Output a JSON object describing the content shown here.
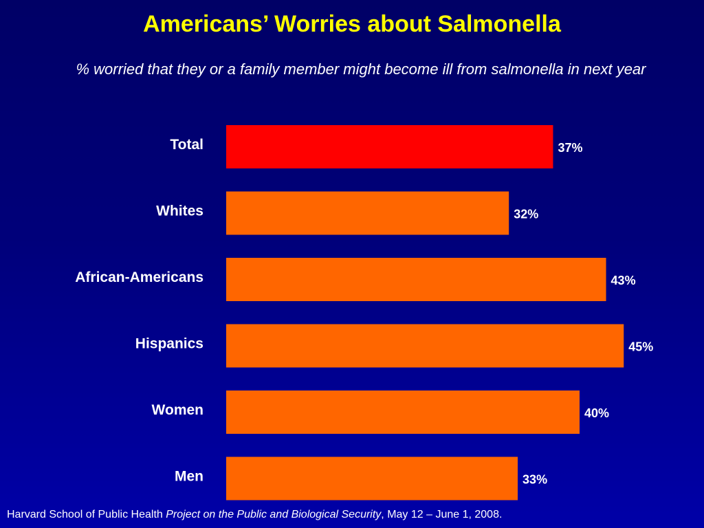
{
  "title": "Americans’ Worries about Salmonella",
  "subtitle": "% worried that they or a family member might become ill from salmonella in next year",
  "footer": {
    "source": "Harvard School of Public Health ",
    "project": "Project on the Public and Biological Security",
    "date": ", May 12 – June 1, 2008."
  },
  "colors": {
    "background_top": "#000066",
    "background_bottom": "#0000a8",
    "title": "#ffff00",
    "highlight_bar": "#ff0000",
    "bar": "#ff6600",
    "text": "#ffffff"
  },
  "chart_data": {
    "type": "bar",
    "orientation": "horizontal",
    "categories": [
      "Total",
      "Whites",
      "African-Americans",
      "Hispanics",
      "Women",
      "Men"
    ],
    "values": [
      37,
      32,
      43,
      45,
      40,
      33
    ],
    "value_labels": [
      "37%",
      "32%",
      "43%",
      "45%",
      "40%",
      "33%"
    ],
    "highlight_category": "Total",
    "xlim": [
      0,
      100
    ],
    "grid": false,
    "legend": "none"
  }
}
